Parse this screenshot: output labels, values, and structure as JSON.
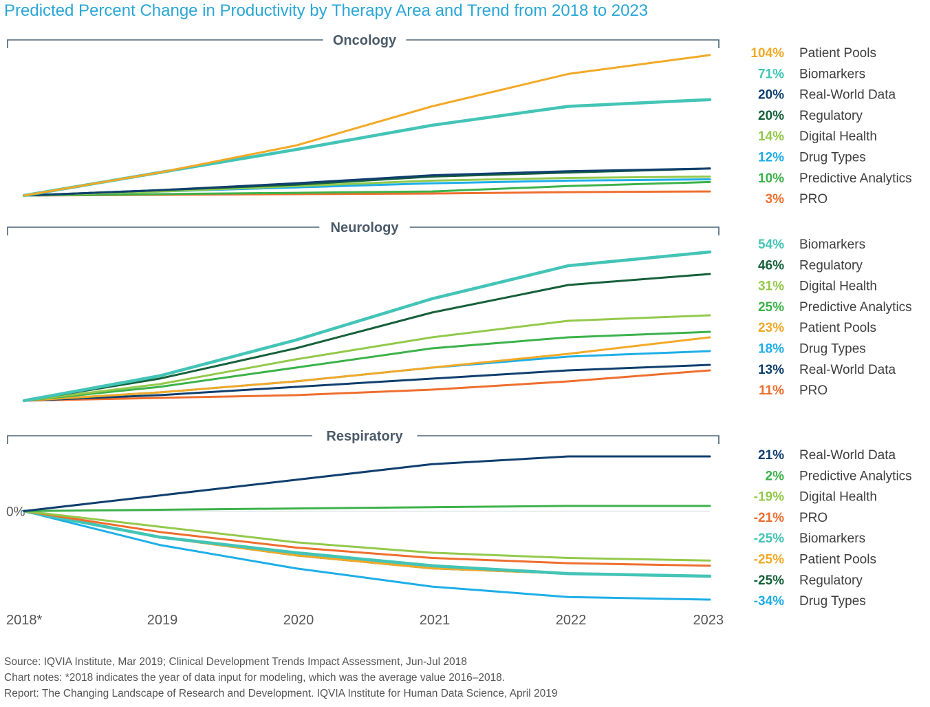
{
  "title": "Predicted Percent Change in Productivity by Therapy Area and Trend from 2018 to 2023",
  "colors": {
    "Patient Pools": "#f2a927",
    "Biomarkers": "#43c4b6",
    "Real-World Data": "#0f3f6e",
    "Regulatory": "#16603a",
    "Digital Health": "#93c94b",
    "Drug Types": "#1eaee7",
    "Predictive Analytics": "#3cb24a",
    "PRO": "#ee6e2e",
    "axis": "#4a6374"
  },
  "chart_data": {
    "type": "line",
    "x": [
      "2018*",
      "2019",
      "2020",
      "2021",
      "2022",
      "2023"
    ],
    "zero_label": "0%",
    "panels": [
      {
        "name": "Oncology",
        "ylim": [
          0,
          105
        ],
        "series": [
          {
            "name": "Patient Pools",
            "label": "104%",
            "values": [
              0,
              17,
              37,
              66,
              90,
              104
            ]
          },
          {
            "name": "Biomarkers",
            "label": "71%",
            "values": [
              0,
              17,
              34,
              52,
              66,
              71
            ]
          },
          {
            "name": "Real-World Data",
            "label": "20%",
            "values": [
              0,
              4,
              9,
              15,
              18,
              20
            ]
          },
          {
            "name": "Regulatory",
            "label": "20%",
            "values": [
              0,
              4,
              8,
              14,
              17,
              20
            ]
          },
          {
            "name": "Digital Health",
            "label": "14%",
            "values": [
              0,
              3,
              7,
              11,
              13,
              14
            ]
          },
          {
            "name": "Drug Types",
            "label": "12%",
            "values": [
              0,
              3,
              6,
              9,
              11,
              12
            ]
          },
          {
            "name": "Predictive Analytics",
            "label": "10%",
            "values": [
              0,
              1,
              2,
              3,
              7,
              10
            ]
          },
          {
            "name": "PRO",
            "label": "3%",
            "values": [
              0,
              0.5,
              1,
              1.5,
              2.5,
              3
            ]
          }
        ]
      },
      {
        "name": "Neurology",
        "ylim": [
          0,
          55
        ],
        "series": [
          {
            "name": "Biomarkers",
            "label": "54%",
            "values": [
              0,
              9,
              22,
              37,
              49,
              54
            ]
          },
          {
            "name": "Regulatory",
            "label": "46%",
            "values": [
              0,
              8,
              19,
              32,
              42,
              46
            ]
          },
          {
            "name": "Digital Health",
            "label": "31%",
            "values": [
              0,
              6,
              15,
              23,
              29,
              31
            ]
          },
          {
            "name": "Predictive Analytics",
            "label": "25%",
            "values": [
              0,
              5,
              12,
              19,
              23,
              25
            ]
          },
          {
            "name": "Patient Pools",
            "label": "23%",
            "values": [
              0,
              3,
              7,
              12,
              17,
              23
            ]
          },
          {
            "name": "Drug Types",
            "label": "18%",
            "values": [
              0,
              3,
              7,
              12,
              16,
              18
            ]
          },
          {
            "name": "Real-World Data",
            "label": "13%",
            "values": [
              0,
              2,
              5,
              8,
              11,
              13
            ]
          },
          {
            "name": "PRO",
            "label": "11%",
            "values": [
              0,
              1,
              2,
              4,
              7,
              11
            ]
          }
        ]
      },
      {
        "name": "Respiratory",
        "ylim": [
          -34,
          21
        ],
        "series": [
          {
            "name": "Real-World Data",
            "label": "21%",
            "values": [
              0,
              6,
              12,
              18,
              21,
              21
            ]
          },
          {
            "name": "Predictive Analytics",
            "label": "2%",
            "values": [
              0,
              0.5,
              1,
              1.5,
              2,
              2
            ]
          },
          {
            "name": "Digital Health",
            "label": "-19%",
            "values": [
              0,
              -6,
              -12,
              -16,
              -18,
              -19
            ]
          },
          {
            "name": "PRO",
            "label": "-21%",
            "values": [
              0,
              -8,
              -14,
              -18,
              -20,
              -21
            ]
          },
          {
            "name": "Biomarkers",
            "label": "-25%",
            "values": [
              0,
              -10,
              -16,
              -21,
              -24,
              -25
            ]
          },
          {
            "name": "Patient Pools",
            "label": "-25%",
            "values": [
              0,
              -10,
              -17,
              -22,
              -24,
              -25
            ]
          },
          {
            "name": "Regulatory",
            "label": "-25%",
            "values": [
              0,
              -10,
              -17,
              -22,
              -24,
              -25
            ]
          },
          {
            "name": "Drug Types",
            "label": "-34%",
            "values": [
              0,
              -13,
              -22,
              -29,
              -33,
              -34
            ]
          }
        ]
      }
    ]
  },
  "footer": {
    "source": "Source: IQVIA Institute, Mar 2019; Clinical Development Trends Impact Assessment, Jun-Jul 2018",
    "notes": "Chart notes: *2018 indicates the year of data input for modeling, which was the average value 2016–2018.",
    "report": "Report: The Changing Landscape of Research and Development. IQVIA Institute for Human Data Science, April 2019"
  }
}
